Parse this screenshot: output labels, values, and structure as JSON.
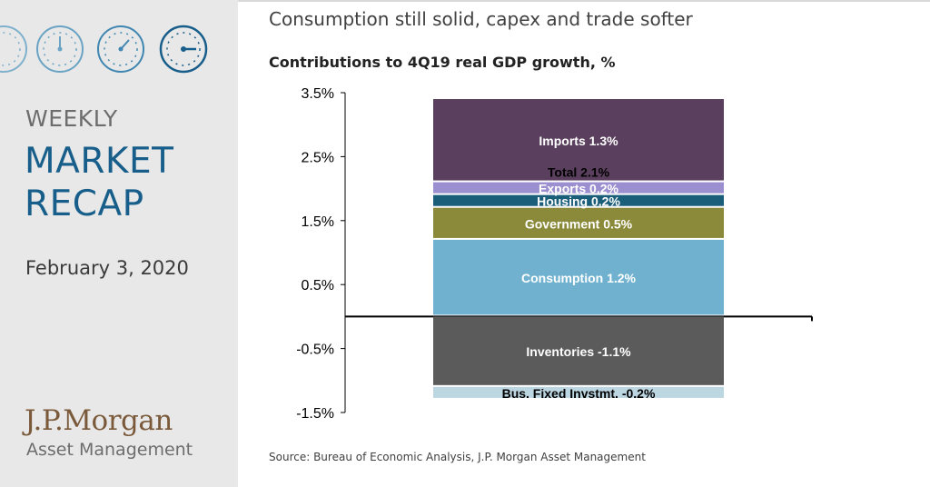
{
  "sidebar": {
    "weekly": "WEEKLY",
    "title_line1": "MARKET",
    "title_line2": "RECAP",
    "date": "February 3, 2020",
    "logo_main": "J.P.Morgan",
    "logo_sub": "Asset Management",
    "clock_icons": [
      "clock-icon",
      "clock-icon",
      "clock-icon",
      "clock-icon"
    ]
  },
  "headline": "Consumption still solid, capex and trade softer",
  "source": "Source: Bureau of Economic Analysis, J.P. Morgan Asset Management",
  "colors": {
    "accent": "#175e8a",
    "imports": "#5b3f5e",
    "exports": "#9c8fcf",
    "housing": "#1b5e7a",
    "government": "#8a8a3a",
    "consumption": "#6fb1cf",
    "inventories": "#5b5b5b",
    "bus_fixed": "#bcd7e2"
  },
  "chart_data": {
    "type": "bar",
    "stacked": true,
    "title": "Contributions to 4Q19 real GDP growth, %",
    "xlabel": "",
    "ylabel": "",
    "ylim": [
      -1.5,
      3.5
    ],
    "yticks": [
      3.5,
      2.5,
      1.5,
      0.5,
      -0.5,
      -1.5
    ],
    "ytick_labels": [
      "3.5%",
      "2.5%",
      "1.5%",
      "0.5%",
      "-0.5%",
      "-1.5%"
    ],
    "total_label": "Total 2.1%",
    "total": 2.1,
    "series": [
      {
        "name": "Consumption",
        "value": 1.2,
        "label": "Consumption 1.2%",
        "color": "#6fb1cf",
        "text_color": "#ffffff"
      },
      {
        "name": "Government",
        "value": 0.5,
        "label": "Government 0.5%",
        "color": "#8a8a3a",
        "text_color": "#ffffff"
      },
      {
        "name": "Housing",
        "value": 0.2,
        "label": "Housing 0.2%",
        "color": "#1b5e7a",
        "text_color": "#ffffff"
      },
      {
        "name": "Exports",
        "value": 0.2,
        "label": "Exports 0.2%",
        "color": "#9c8fcf",
        "text_color": "#ffffff"
      },
      {
        "name": "Imports",
        "value": 1.3,
        "label": "Imports 1.3%",
        "color": "#5b3f5e",
        "text_color": "#ffffff"
      },
      {
        "name": "Inventories",
        "value": -1.1,
        "label": "Inventories -1.1%",
        "color": "#5b5b5b",
        "text_color": "#ffffff"
      },
      {
        "name": "Bus. Fixed Invstmt.",
        "value": -0.2,
        "label": "Bus. Fixed Invstmt. -0.2%",
        "color": "#bcd7e2",
        "text_color": "#000000"
      }
    ]
  }
}
